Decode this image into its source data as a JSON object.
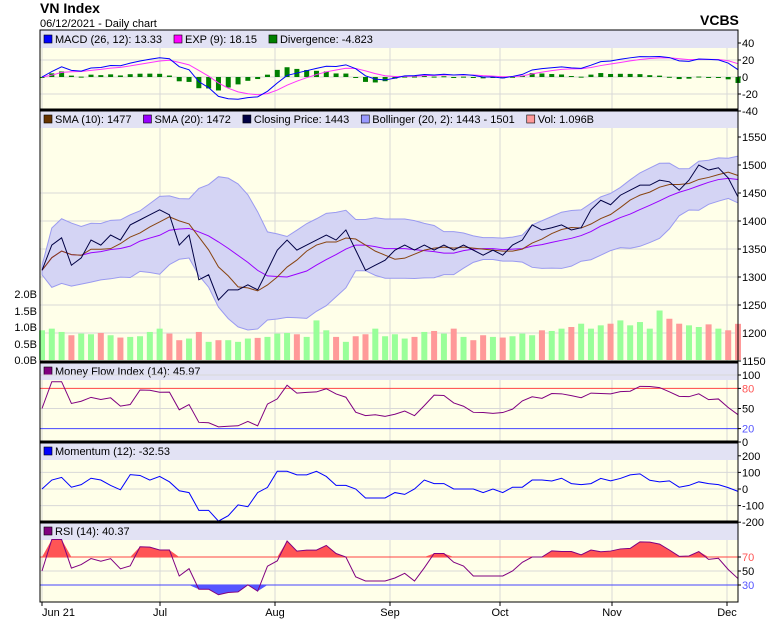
{
  "header": {
    "title": "VN Index",
    "subtitle": "06/12/2021 - Daily chart",
    "brand": "VCBS"
  },
  "legends": {
    "macd": [
      {
        "label": "MACD (26, 12): 13.33",
        "color": "#0000ff"
      },
      {
        "label": "EXP (9): 18.15",
        "color": "#ff00ff"
      },
      {
        "label": "Divergence: -4.823",
        "color": "#008000"
      }
    ],
    "price": [
      {
        "label": "SMA (10): 1477",
        "color": "#663300"
      },
      {
        "label": "SMA (20): 1472",
        "color": "#9900ff"
      },
      {
        "label": "Closing Price: 1443",
        "color": "#000044"
      },
      {
        "label": "Bollinger (20, 2): 1443 - 1501",
        "color": "#9999ff"
      },
      {
        "label": "Vol: 1.096B",
        "color": "#ff9999"
      }
    ],
    "mfi": [
      {
        "label": "Money Flow Index (14): 45.97",
        "color": "#800080"
      }
    ],
    "mom": [
      {
        "label": "Momentum (12): -32.53",
        "color": "#0000ff"
      }
    ],
    "rsi": [
      {
        "label": "RSI (14): 40.37",
        "color": "#800080"
      }
    ]
  },
  "chart_data": {
    "type": "line",
    "title": "VN Index",
    "x_ticks": [
      "Jun 21",
      "Jul",
      "Aug",
      "Sep",
      "Oct",
      "Nov",
      "Dec"
    ],
    "price_axis": {
      "ticks": [
        "1550",
        "1500",
        "1450",
        "1400",
        "1350",
        "1300",
        "1250",
        "1200",
        "1150"
      ],
      "ylim": [
        1150,
        1550
      ]
    },
    "volume_axis": {
      "ticks": [
        "2.0B",
        "1.5B",
        "1.0B",
        "0.5B",
        "0.0B"
      ],
      "ylim": [
        0,
        2.0
      ]
    },
    "macd_axis": {
      "ticks": [
        "40",
        "20",
        "0",
        "-20",
        "-40"
      ]
    },
    "mfi_axis": {
      "ticks": [
        "100",
        "80",
        "50",
        "20",
        "0"
      ],
      "levels": [
        80,
        20
      ]
    },
    "mom_axis": {
      "ticks": [
        "200",
        "100",
        "0",
        "-100",
        "-200"
      ]
    },
    "rsi_axis": {
      "ticks": [
        "70",
        "50",
        "30"
      ],
      "levels": [
        70,
        30
      ]
    },
    "close": [
      1312,
      1357,
      1370,
      1321,
      1334,
      1366,
      1357,
      1375,
      1366,
      1393,
      1402,
      1411,
      1420,
      1411,
      1357,
      1375,
      1295,
      1304,
      1259,
      1277,
      1277,
      1286,
      1277,
      1312,
      1348,
      1366,
      1348,
      1357,
      1366,
      1375,
      1366,
      1384,
      1348,
      1312,
      1321,
      1330,
      1348,
      1357,
      1348,
      1357,
      1348,
      1357,
      1348,
      1357,
      1348,
      1339,
      1348,
      1339,
      1357,
      1366,
      1393,
      1384,
      1388,
      1393,
      1384,
      1388,
      1420,
      1437,
      1429,
      1446,
      1455,
      1464,
      1464,
      1473,
      1470,
      1455,
      1473,
      1500,
      1491,
      1495,
      1477,
      1443
    ],
    "volume_B": [
      0.9,
      0.95,
      0.85,
      0.75,
      0.8,
      0.78,
      0.82,
      0.75,
      0.68,
      0.7,
      0.72,
      0.85,
      0.95,
      0.8,
      0.6,
      0.65,
      0.85,
      0.55,
      0.6,
      0.6,
      0.55,
      0.65,
      0.67,
      0.7,
      0.8,
      0.82,
      0.78,
      0.7,
      1.2,
      0.9,
      0.7,
      0.55,
      0.72,
      0.78,
      0.95,
      0.72,
      0.78,
      0.65,
      0.7,
      0.85,
      0.88,
      0.8,
      0.95,
      0.7,
      0.6,
      0.75,
      0.7,
      0.68,
      0.72,
      0.8,
      0.75,
      0.9,
      0.88,
      0.95,
      1.0,
      1.1,
      0.95,
      1.05,
      1.1,
      1.2,
      1.05,
      1.15,
      0.95,
      1.5,
      1.25,
      1.1,
      1.05,
      1.0,
      1.08,
      0.95,
      0.9,
      1.096
    ]
  }
}
